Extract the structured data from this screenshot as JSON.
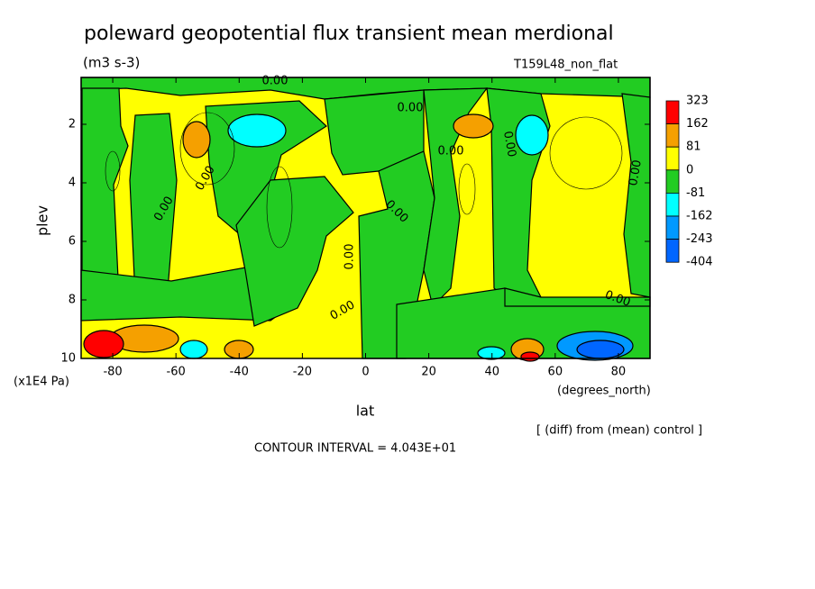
{
  "chart_data": {
    "type": "contour",
    "title": "poleward geopotential flux transient mean merdional",
    "units": "(m3 s-3)",
    "dataset": "T159L48_non_flat",
    "xlabel": "lat",
    "xunits": "(degrees_north)",
    "ylabel": "plev",
    "yunits": "(x1E4 Pa)",
    "xlim": [
      -90,
      90
    ],
    "xticks": [
      -80,
      -60,
      -40,
      -20,
      0,
      20,
      40,
      60,
      80
    ],
    "ylim": [
      10,
      0.4
    ],
    "yticks": [
      2,
      4,
      6,
      8,
      10
    ],
    "levels": [
      323,
      162,
      81,
      0,
      -81,
      -162,
      -243,
      -404
    ],
    "level_colors": [
      "#ff0000",
      "#f5a000",
      "#ffff00",
      "#22cc22",
      "#00ffff",
      "#0099ff",
      "#0066ff"
    ],
    "contour_label": "0.00",
    "note": "[ (diff) from (mean) control ]",
    "contour_interval": "CONTOUR INTERVAL = 4.043E+01"
  }
}
